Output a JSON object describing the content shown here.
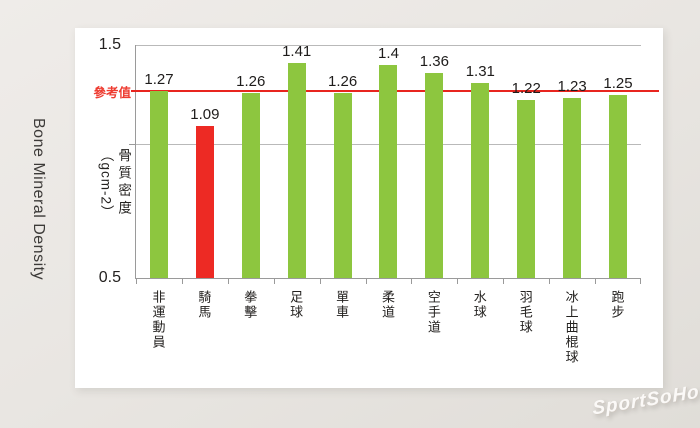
{
  "page": {
    "background_color": "#e9e6e2",
    "card_color": "#ffffff"
  },
  "side_title": "Bone Mineral Density",
  "watermark": "SportSoHo",
  "chart_data": {
    "type": "bar",
    "title": "",
    "categories": [
      "非運動員",
      "騎馬",
      "拳擊",
      "足球",
      "單車",
      "柔道",
      "空手道",
      "水球",
      "羽毛球",
      "冰上曲棍球",
      "跑步"
    ],
    "values": [
      1.27,
      1.09,
      1.26,
      1.41,
      1.26,
      1.4,
      1.36,
      1.31,
      1.22,
      1.23,
      1.25
    ],
    "highlight_index": 1,
    "highlight_category": "騎馬",
    "bar_color": "#8dc63f",
    "highlight_color": "#ed2a24",
    "ylabel_lines": [
      "骨質密度",
      "（gcm-2）"
    ],
    "ylabel": "骨質密度（gcm-2）",
    "ylim": [
      0.5,
      1.5
    ],
    "ytick_labels": [
      "1.5",
      "0.5"
    ],
    "gridline_values": [
      1.5,
      1.0
    ],
    "grid": true,
    "legend": false,
    "reference_line": {
      "label": "參考值",
      "value": 1.27,
      "color": "#e8251f"
    }
  }
}
